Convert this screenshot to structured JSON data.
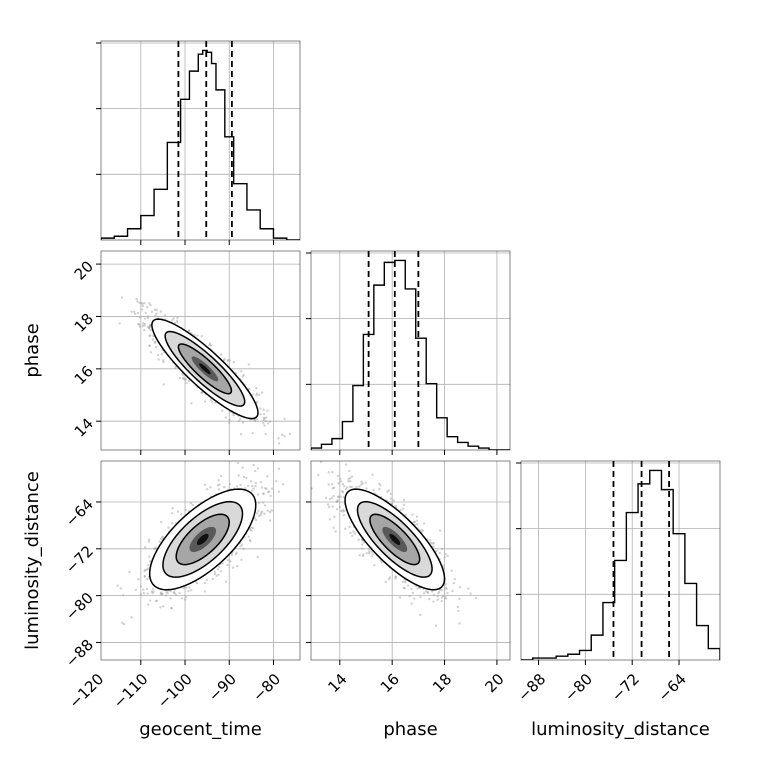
{
  "chart_data": {
    "type": "corner",
    "parameters": [
      "geocent_time",
      "phase",
      "luminosity_distance"
    ],
    "axis_labels": {
      "bottom": [
        "geocent_time",
        "phase",
        "luminosity_distance"
      ],
      "left": [
        "phase",
        "luminosity_distance"
      ]
    },
    "ranges": {
      "geocent_time": [
        -119,
        -74
      ],
      "phase": [
        12.9,
        20.5
      ],
      "luminosity_distance": [
        -91,
        -57
      ]
    },
    "ticks": {
      "geocent_time": [
        -120,
        -110,
        -100,
        -90,
        -80
      ],
      "phase": [
        14,
        16,
        18,
        20
      ],
      "luminosity_distance": [
        -88,
        -80,
        -72,
        -64
      ]
    },
    "tick_labels": {
      "geocent_time": [
        "−120",
        "−110",
        "−100",
        "−90",
        "−80"
      ],
      "phase": [
        "14",
        "16",
        "18",
        "20"
      ],
      "luminosity_distance": [
        "−88",
        "−80",
        "−72",
        "−64"
      ]
    },
    "grid": true,
    "quantile_lines": {
      "geocent_time": [
        -101.5,
        -95.2,
        -89.4
      ],
      "phase": [
        15.1,
        16.1,
        17.0
      ],
      "luminosity_distance": [
        -75.2,
        -70.4,
        -65.7
      ]
    },
    "histograms": {
      "geocent_time": {
        "edges": [
          -119,
          -116,
          -113,
          -110,
          -107,
          -104,
          -101,
          -99,
          -97,
          -96,
          -95,
          -94,
          -93,
          -91,
          -89,
          -86,
          -83,
          -80,
          -77,
          -74
        ],
        "counts": [
          1,
          2,
          6,
          13,
          27,
          52,
          75,
          90,
          99,
          101,
          100,
          94,
          80,
          55,
          30,
          16,
          6,
          1,
          0
        ]
      },
      "phase": {
        "edges": [
          12.9,
          13.3,
          13.7,
          14.1,
          14.5,
          14.9,
          15.3,
          15.7,
          16.1,
          16.5,
          16.9,
          17.3,
          17.7,
          18.1,
          18.5,
          18.9,
          19.3,
          19.7,
          20.1,
          20.5
        ],
        "counts": [
          1,
          3,
          6,
          15,
          34,
          61,
          87,
          99,
          100,
          85,
          59,
          35,
          17,
          7,
          4,
          2,
          1,
          0,
          0
        ]
      },
      "luminosity_distance": {
        "edges": [
          -91,
          -89,
          -87,
          -85,
          -83,
          -81,
          -79,
          -77,
          -75,
          -73,
          -71,
          -69,
          -67,
          -65,
          -63,
          -61,
          -59,
          -57
        ],
        "counts": [
          0,
          1,
          1,
          2,
          3,
          5,
          13,
          30,
          52,
          77,
          92,
          99,
          89,
          66,
          40,
          18,
          6
        ]
      }
    },
    "pairs": [
      {
        "x": "geocent_time",
        "y": "phase",
        "center": [
          -95.5,
          16.0
        ],
        "sigma": [
          6.0,
          0.95
        ],
        "correlation": -0.88
      },
      {
        "x": "geocent_time",
        "y": "luminosity_distance",
        "center": [
          -96.0,
          -70.4
        ],
        "sigma": [
          6.0,
          4.3
        ],
        "correlation": 0.68
      },
      {
        "x": "phase",
        "y": "luminosity_distance",
        "center": [
          16.1,
          -70.4
        ],
        "sigma": [
          0.95,
          4.3
        ],
        "correlation": -0.78
      }
    ],
    "contour_levels_sigma": [
      0.5,
      1.0,
      1.5,
      2.0
    ]
  }
}
